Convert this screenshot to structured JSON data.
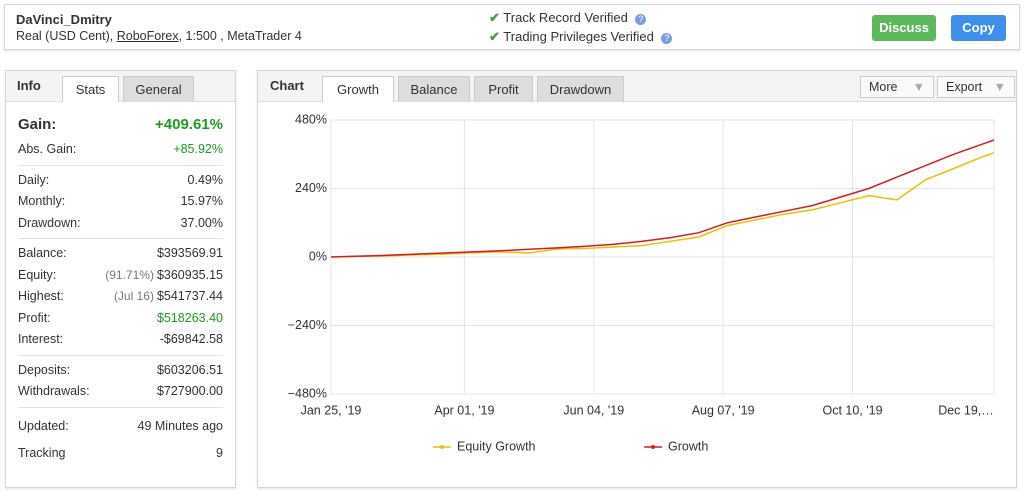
{
  "header": {
    "name": "DaVinci_Dmitry",
    "account_prefix": "Real (USD Cent), ",
    "broker": "RoboForex",
    "account_suffix": ", 1:500 , MetaTrader 4",
    "verifications": [
      "Track Record Verified",
      "Trading Privileges Verified"
    ],
    "buttons": [
      "Discuss",
      "Copy"
    ]
  },
  "info_panel": {
    "title": "Info",
    "tabs": [
      "Stats",
      "General"
    ],
    "groups": [
      [
        {
          "label": "Gain:",
          "value": "+409.61%",
          "color": "#1e9b1e"
        },
        {
          "label": "Abs. Gain:",
          "value": "+85.92%",
          "color": "#1e9b1e"
        }
      ],
      [
        {
          "label": "Daily:",
          "value": "0.49%"
        },
        {
          "label": "Monthly:",
          "value": "15.97%"
        },
        {
          "label": "Drawdown:",
          "value": "37.00%"
        }
      ],
      [
        {
          "label": "Balance:",
          "value": "$393569.91"
        },
        {
          "label": "Equity:",
          "note": "(91.71%)",
          "value": "$360935.15"
        },
        {
          "label": "Highest:",
          "note": "(Jul 16)",
          "value": "$541737.44"
        },
        {
          "label": "Profit:",
          "value": "$518263.40",
          "color": "#1e9b1e"
        },
        {
          "label": "Interest:",
          "value": "-$69842.58"
        }
      ],
      [
        {
          "label": "Deposits:",
          "value": "$603206.51"
        },
        {
          "label": "Withdrawals:",
          "value": "$727900.00"
        }
      ],
      [
        {
          "label": "Updated:",
          "value": "49 Minutes ago"
        },
        {
          "label": "Tracking",
          "value": "9"
        }
      ]
    ]
  },
  "chart_panel": {
    "title": "Chart",
    "tabs": [
      "Growth",
      "Balance",
      "Profit",
      "Drawdown"
    ],
    "menus": [
      "More",
      "Export"
    ]
  },
  "chart_data": {
    "type": "line",
    "x": [
      0,
      14,
      28,
      42,
      56,
      70,
      84,
      98,
      112,
      126,
      140,
      154,
      168,
      182,
      196,
      210,
      224,
      238,
      252,
      266,
      280,
      294,
      308,
      322,
      328
    ],
    "xlim": [
      0,
      328
    ],
    "xticks": [
      {
        "value": 0,
        "label": "Jan 25, '19"
      },
      {
        "value": 66,
        "label": "Apr 01, '19"
      },
      {
        "value": 130,
        "label": "Jun 04, '19"
      },
      {
        "value": 194,
        "label": "Aug 07, '19"
      },
      {
        "value": 258,
        "label": "Oct 10, '19"
      },
      {
        "value": 328,
        "label": "Dec 19,…"
      }
    ],
    "ylim": [
      -480,
      480
    ],
    "yticks": [
      {
        "value": 480,
        "label": "480%"
      },
      {
        "value": 240,
        "label": "240%"
      },
      {
        "value": 0,
        "label": "0%"
      },
      {
        "value": -240,
        "label": "−240%"
      },
      {
        "value": -480,
        "label": "−480%"
      }
    ],
    "grid": true,
    "series": [
      {
        "name": "Equity Growth",
        "color": "#f0be0a",
        "values": [
          0,
          2,
          4,
          8,
          10,
          15,
          18,
          14,
          28,
          30,
          35,
          40,
          55,
          70,
          110,
          130,
          150,
          165,
          190,
          215,
          200,
          270,
          310,
          350,
          365
        ]
      },
      {
        "name": "Growth",
        "color": "#d02020",
        "values": [
          0,
          3,
          6,
          10,
          14,
          18,
          22,
          27,
          32,
          38,
          45,
          55,
          68,
          85,
          120,
          140,
          160,
          180,
          210,
          240,
          280,
          320,
          360,
          395,
          410
        ]
      }
    ]
  }
}
